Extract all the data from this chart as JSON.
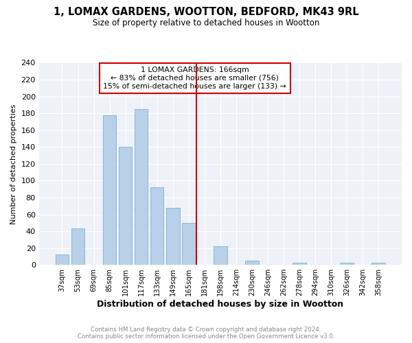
{
  "title": "1, LOMAX GARDENS, WOOTTON, BEDFORD, MK43 9RL",
  "subtitle": "Size of property relative to detached houses in Wootton",
  "xlabel": "Distribution of detached houses by size in Wootton",
  "ylabel": "Number of detached properties",
  "categories": [
    "37sqm",
    "53sqm",
    "69sqm",
    "85sqm",
    "101sqm",
    "117sqm",
    "133sqm",
    "149sqm",
    "165sqm",
    "181sqm",
    "198sqm",
    "214sqm",
    "230sqm",
    "246sqm",
    "262sqm",
    "278sqm",
    "294sqm",
    "310sqm",
    "326sqm",
    "342sqm",
    "358sqm"
  ],
  "values": [
    12,
    43,
    0,
    178,
    140,
    185,
    92,
    68,
    50,
    0,
    22,
    0,
    5,
    0,
    0,
    3,
    0,
    0,
    3,
    0,
    3
  ],
  "bar_color": "#b8d0e8",
  "bar_edge_color": "#7aafd4",
  "annotation_text_line1": "1 LOMAX GARDENS: 166sqm",
  "annotation_text_line2": "← 83% of detached houses are smaller (756)",
  "annotation_text_line3": "15% of semi-detached houses are larger (133) →",
  "annotation_box_color": "#cc0000",
  "annotation_line_color": "#cc0000",
  "footer_line1": "Contains HM Land Registry data © Crown copyright and database right 2024.",
  "footer_line2": "Contains public sector information licensed under the Open Government Licence v3.0.",
  "ylim": [
    0,
    240
  ],
  "yticks": [
    0,
    20,
    40,
    60,
    80,
    100,
    120,
    140,
    160,
    180,
    200,
    220,
    240
  ],
  "bg_color": "#eef2f8",
  "fig_bg_color": "#ffffff",
  "line_x_index": 8.5
}
